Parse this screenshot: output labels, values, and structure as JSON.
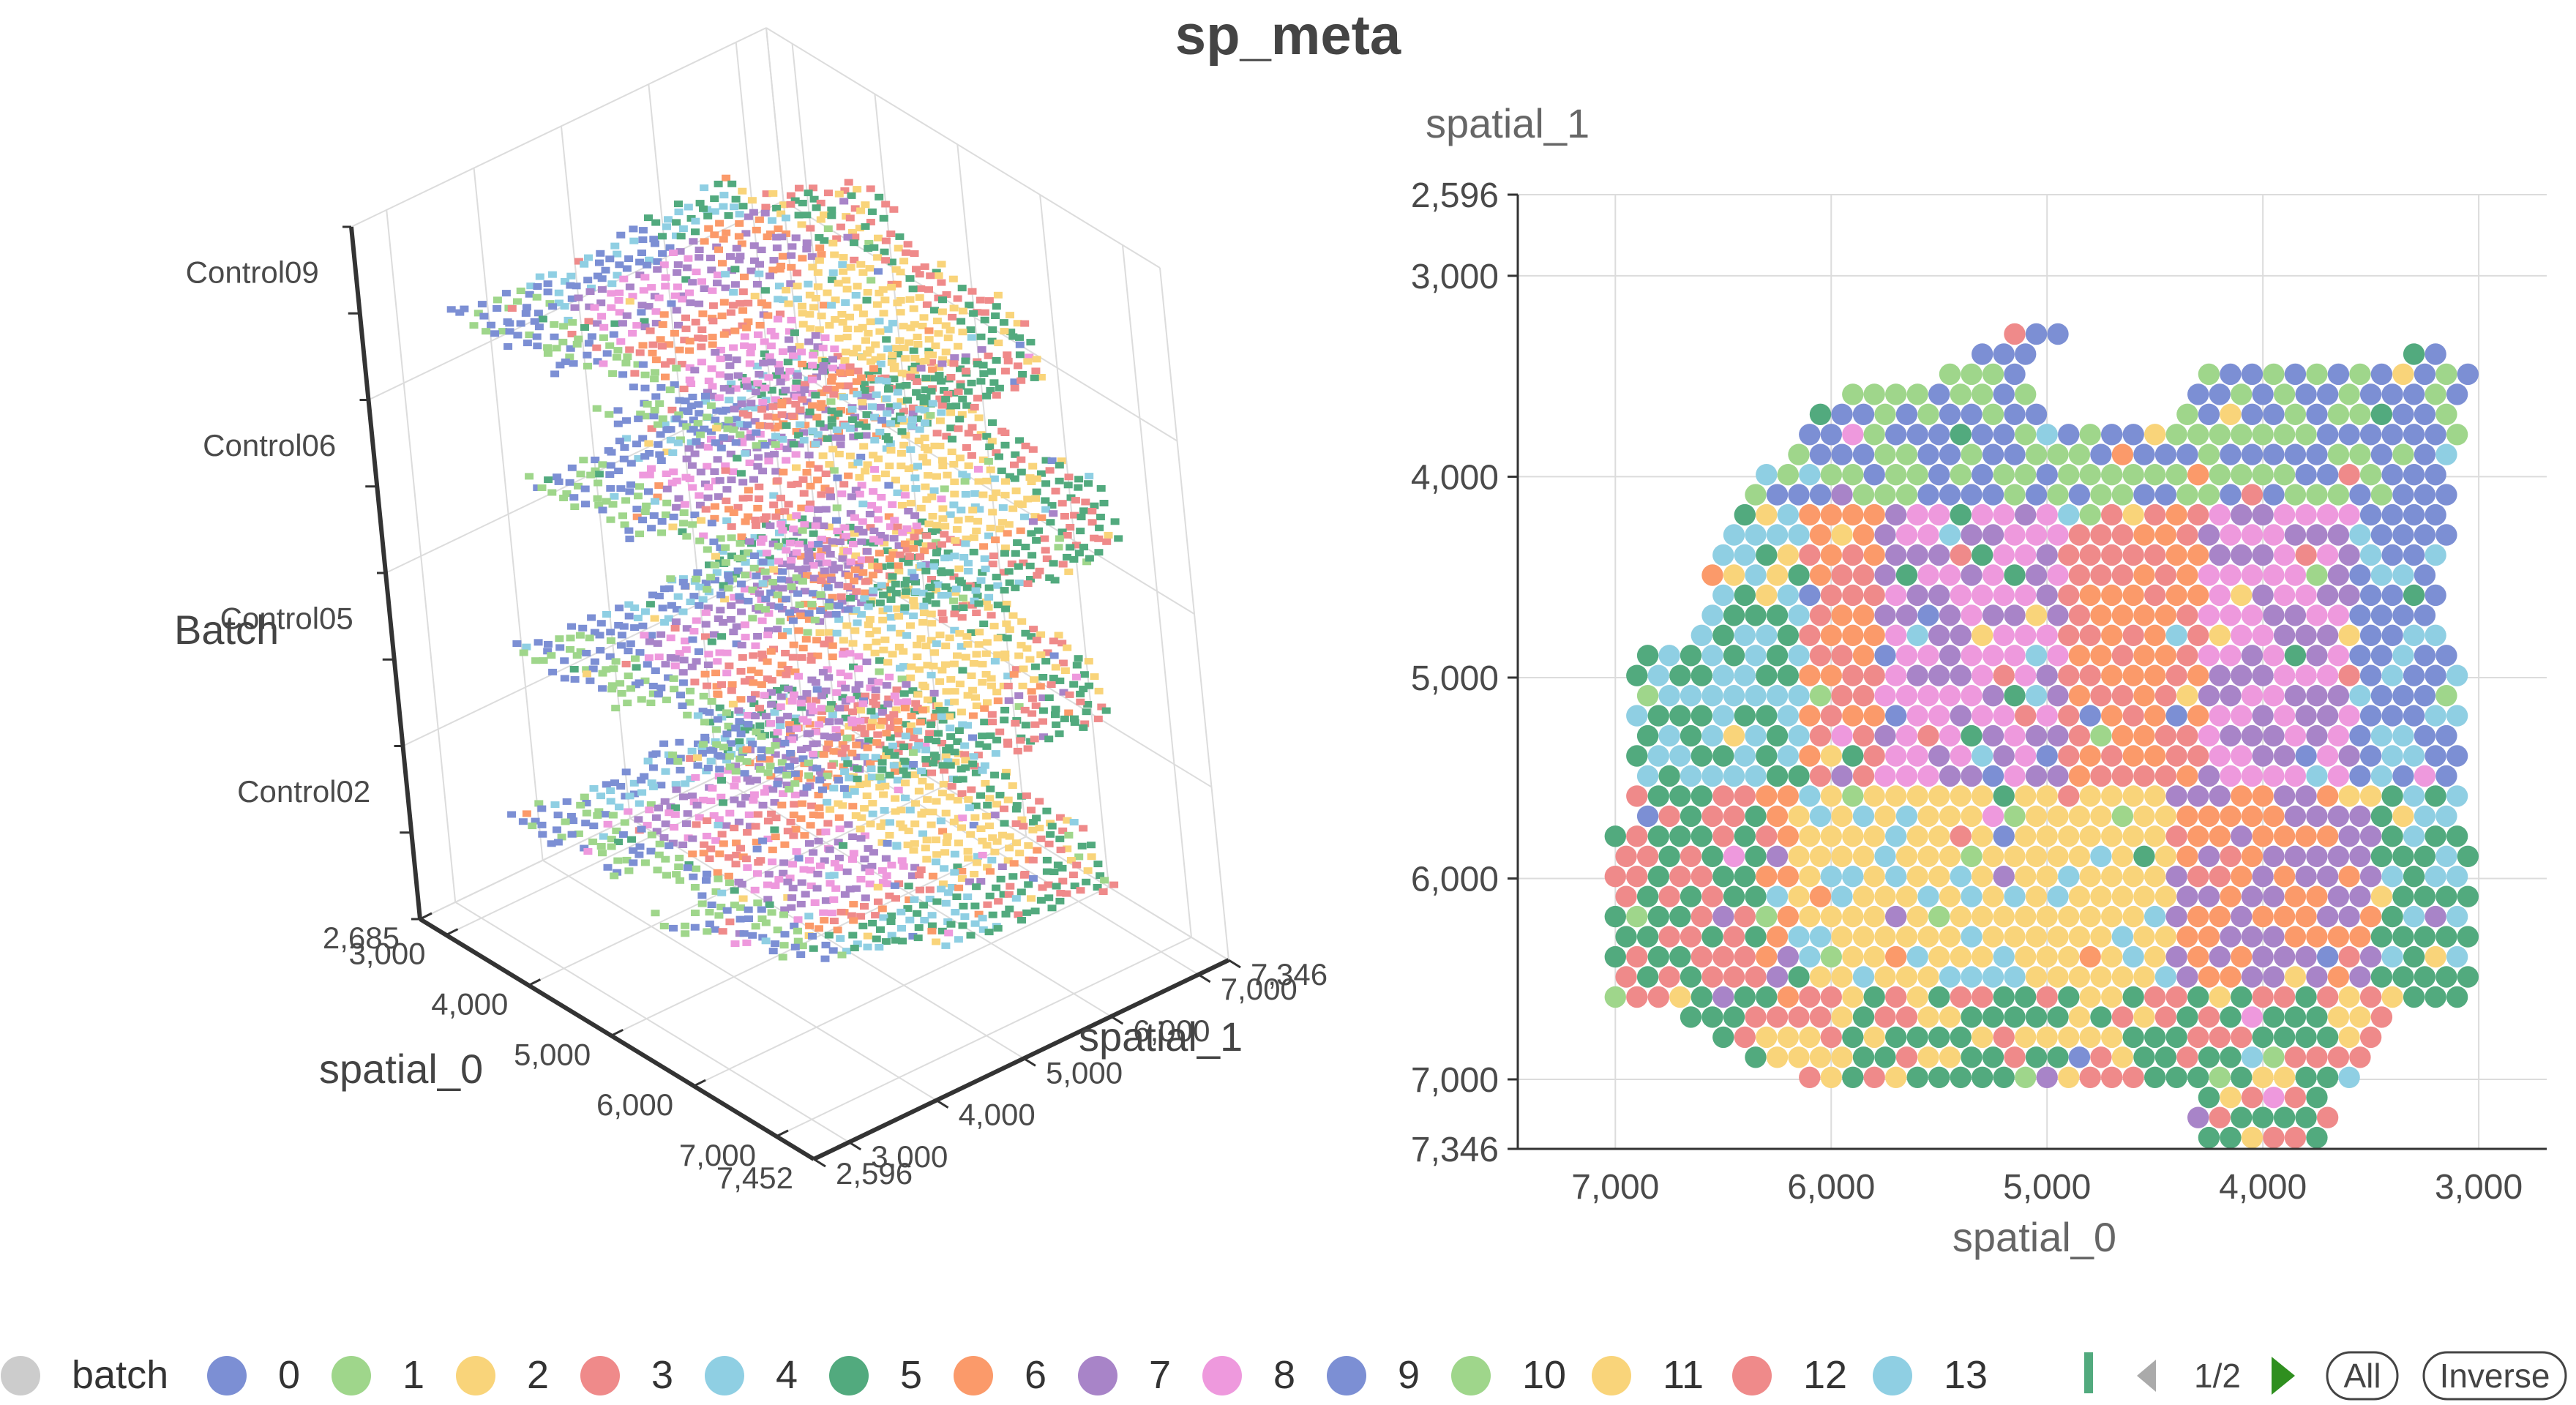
{
  "title": "sp_meta",
  "colors": {
    "batch_inactive": "#cccccc",
    "cluster_palette": [
      "#7c8fd4",
      "#9fd68b",
      "#f9d47a",
      "#ef8a8a",
      "#8fcfe3",
      "#52aa7e",
      "#fb9a6a",
      "#a884c8",
      "#ee99dd",
      "#7c8fd4",
      "#9fd68b",
      "#f9d47a",
      "#ef8a8a",
      "#8fcfe3",
      "#52aa7e"
    ],
    "axis": "#333333",
    "grid": "#dcdcdc",
    "text": "#4a4a4a",
    "pager_active": "#2f8f1f",
    "pager_inactive": "#aaaaaa"
  },
  "chart_data": [
    {
      "type": "scatter",
      "subtype": "scatter3d",
      "title": "",
      "x_axis": {
        "name": "spatial_0",
        "range": [
          2685,
          7452
        ],
        "ticks": [
          "2,685",
          "3,000",
          "4,000",
          "5,000",
          "6,000",
          "7,000",
          "7,452"
        ]
      },
      "y_axis": {
        "name": "spatial_1",
        "range": [
          2596,
          7346
        ],
        "ticks": [
          "2,596",
          "3,000",
          "4,000",
          "5,000",
          "6,000",
          "7,000",
          "7,346"
        ]
      },
      "z_axis": {
        "name": "Batch",
        "categories": [
          "Control02",
          "Control05",
          "Control06",
          "Control09"
        ]
      },
      "grid": true
    },
    {
      "type": "scatter",
      "title": "",
      "xlabel": "spatial_0",
      "ylabel": "spatial_1",
      "xlim": [
        7452,
        2685
      ],
      "ylim": [
        7346,
        2596
      ],
      "x_inverted": true,
      "y_inverted": true,
      "x_ticks": [
        "7,000",
        "6,000",
        "5,000",
        "4,000",
        "3,000"
      ],
      "y_ticks": [
        "2,596",
        "3,000",
        "4,000",
        "5,000",
        "6,000",
        "7,000",
        "7,346"
      ],
      "grid": true,
      "point_radius_units": 50
    }
  ],
  "legend": {
    "placement": "bottom",
    "items": [
      "batch",
      "0",
      "1",
      "2",
      "3",
      "4",
      "5",
      "6",
      "7",
      "8",
      "9",
      "10",
      "11",
      "12",
      "13"
    ],
    "page_label": "1/2",
    "all_label": "All",
    "inverse_label": "Inverse"
  }
}
